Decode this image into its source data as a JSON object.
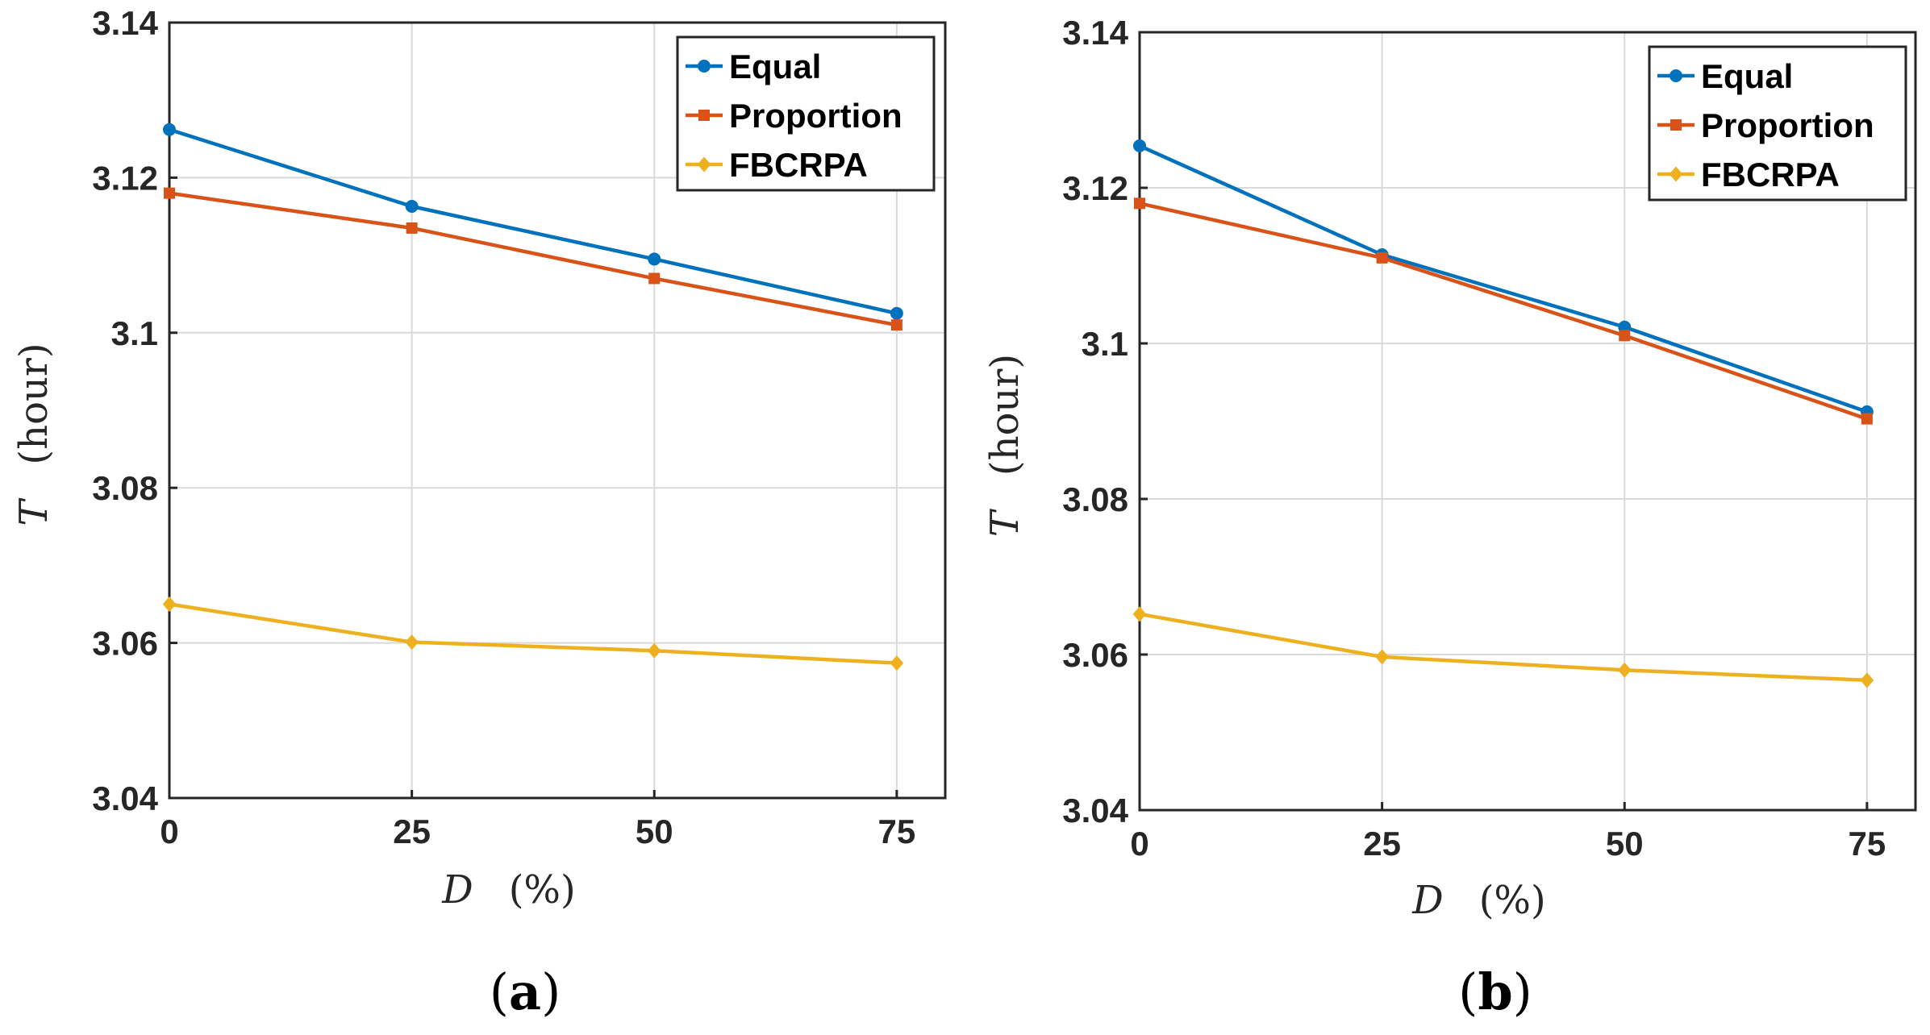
{
  "colors": {
    "Equal": "#0072BD",
    "Proportion": "#D95319",
    "FBCRPA": "#EDB120",
    "grid": "#d9d9d9",
    "axis": "#262626"
  },
  "chart_data": [
    {
      "type": "line",
      "caption": {
        "open": "(",
        "letter": "a",
        "close": ")"
      },
      "x": [
        0,
        25,
        50,
        75
      ],
      "xlim": [
        0,
        80
      ],
      "ylim": [
        3.04,
        3.14
      ],
      "xticks": [
        "0",
        "25",
        "50",
        "75"
      ],
      "yticks": [
        "3.04",
        "3.06",
        "3.08",
        "3.1",
        "3.12",
        "3.14"
      ],
      "xlabel": {
        "var": "D",
        "unit": "(%)"
      },
      "ylabel": {
        "var": "T",
        "unit": "(hour)"
      },
      "grid": true,
      "legend_position": "top-right",
      "series": [
        {
          "name": "Equal",
          "marker": "circle",
          "values": [
            3.1262,
            3.1163,
            3.1095,
            3.1025
          ]
        },
        {
          "name": "Proportion",
          "marker": "square",
          "values": [
            3.118,
            3.1135,
            3.107,
            3.101
          ]
        },
        {
          "name": "FBCRPA",
          "marker": "diamond",
          "values": [
            3.065,
            3.0601,
            3.059,
            3.0574
          ]
        }
      ]
    },
    {
      "type": "line",
      "caption": {
        "open": "(",
        "letter": "b",
        "close": ")"
      },
      "x": [
        0,
        25,
        50,
        75
      ],
      "xlim": [
        0,
        80
      ],
      "ylim": [
        3.04,
        3.14
      ],
      "xticks": [
        "0",
        "25",
        "50",
        "75"
      ],
      "yticks": [
        "3.04",
        "3.06",
        "3.08",
        "3.1",
        "3.12",
        "3.14"
      ],
      "xlabel": {
        "var": "D",
        "unit": "(%)"
      },
      "ylabel": {
        "var": "T",
        "unit": "(hour)"
      },
      "grid": true,
      "legend_position": "top-right",
      "series": [
        {
          "name": "Equal",
          "marker": "circle",
          "values": [
            3.1254,
            3.1114,
            3.1021,
            3.0912
          ]
        },
        {
          "name": "Proportion",
          "marker": "square",
          "values": [
            3.118,
            3.111,
            3.101,
            3.0903
          ]
        },
        {
          "name": "FBCRPA",
          "marker": "diamond",
          "values": [
            3.0652,
            3.0597,
            3.058,
            3.0567
          ]
        }
      ]
    }
  ]
}
